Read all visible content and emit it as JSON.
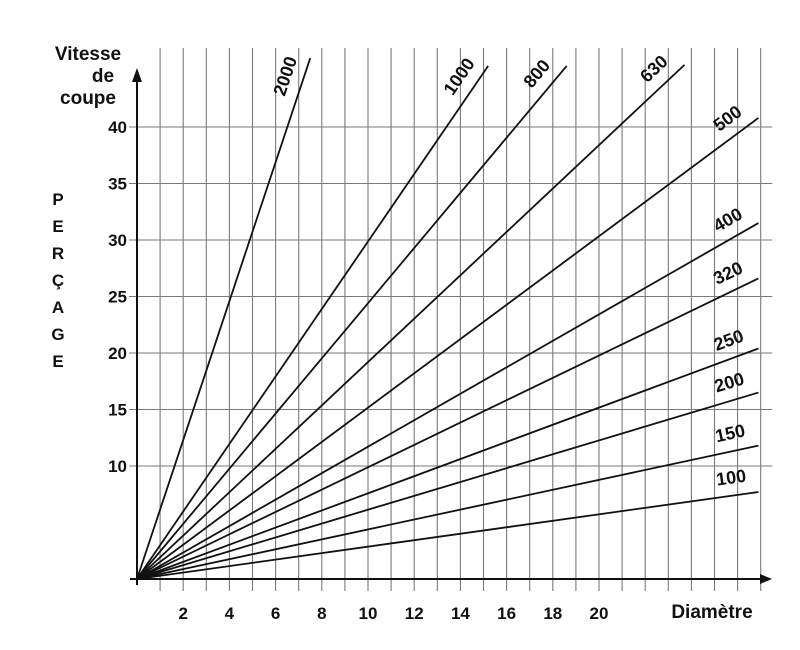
{
  "chart_data": {
    "type": "line",
    "y_axis_title_lines": [
      "Vitesse",
      "de",
      "coupe"
    ],
    "x_axis_title": "Diamètre",
    "side_label": [
      "P",
      "E",
      "R",
      "Ç",
      "A",
      "G",
      "E"
    ],
    "x_ticks": [
      2,
      4,
      6,
      8,
      10,
      12,
      14,
      16,
      18,
      20
    ],
    "y_ticks": [
      10,
      15,
      20,
      25,
      30,
      35,
      40
    ],
    "xlim": [
      0,
      27.5
    ],
    "ylim": [
      0,
      45
    ],
    "grid": true,
    "series": [
      {
        "name": "2000",
        "x": [
          0,
          7.5
        ],
        "y": [
          0,
          46.1
        ]
      },
      {
        "name": "1000",
        "x": [
          0,
          15.2
        ],
        "y": [
          0,
          45.4
        ]
      },
      {
        "name": "800",
        "x": [
          0,
          18.6
        ],
        "y": [
          0,
          45.4
        ]
      },
      {
        "name": "630",
        "x": [
          0,
          23.7
        ],
        "y": [
          0,
          45.5
        ]
      },
      {
        "name": "500",
        "x": [
          0,
          26.9
        ],
        "y": [
          0,
          40.8
        ]
      },
      {
        "name": "400",
        "x": [
          0,
          26.9
        ],
        "y": [
          0,
          31.5
        ]
      },
      {
        "name": "320",
        "x": [
          0,
          26.9
        ],
        "y": [
          0,
          26.6
        ]
      },
      {
        "name": "250",
        "x": [
          0,
          26.9
        ],
        "y": [
          0,
          20.4
        ]
      },
      {
        "name": "200",
        "x": [
          0,
          26.9
        ],
        "y": [
          0,
          16.5
        ]
      },
      {
        "name": "150",
        "x": [
          0,
          26.9
        ],
        "y": [
          0,
          11.8
        ]
      },
      {
        "name": "100",
        "x": [
          0,
          26.9
        ],
        "y": [
          0,
          7.7
        ]
      }
    ]
  }
}
